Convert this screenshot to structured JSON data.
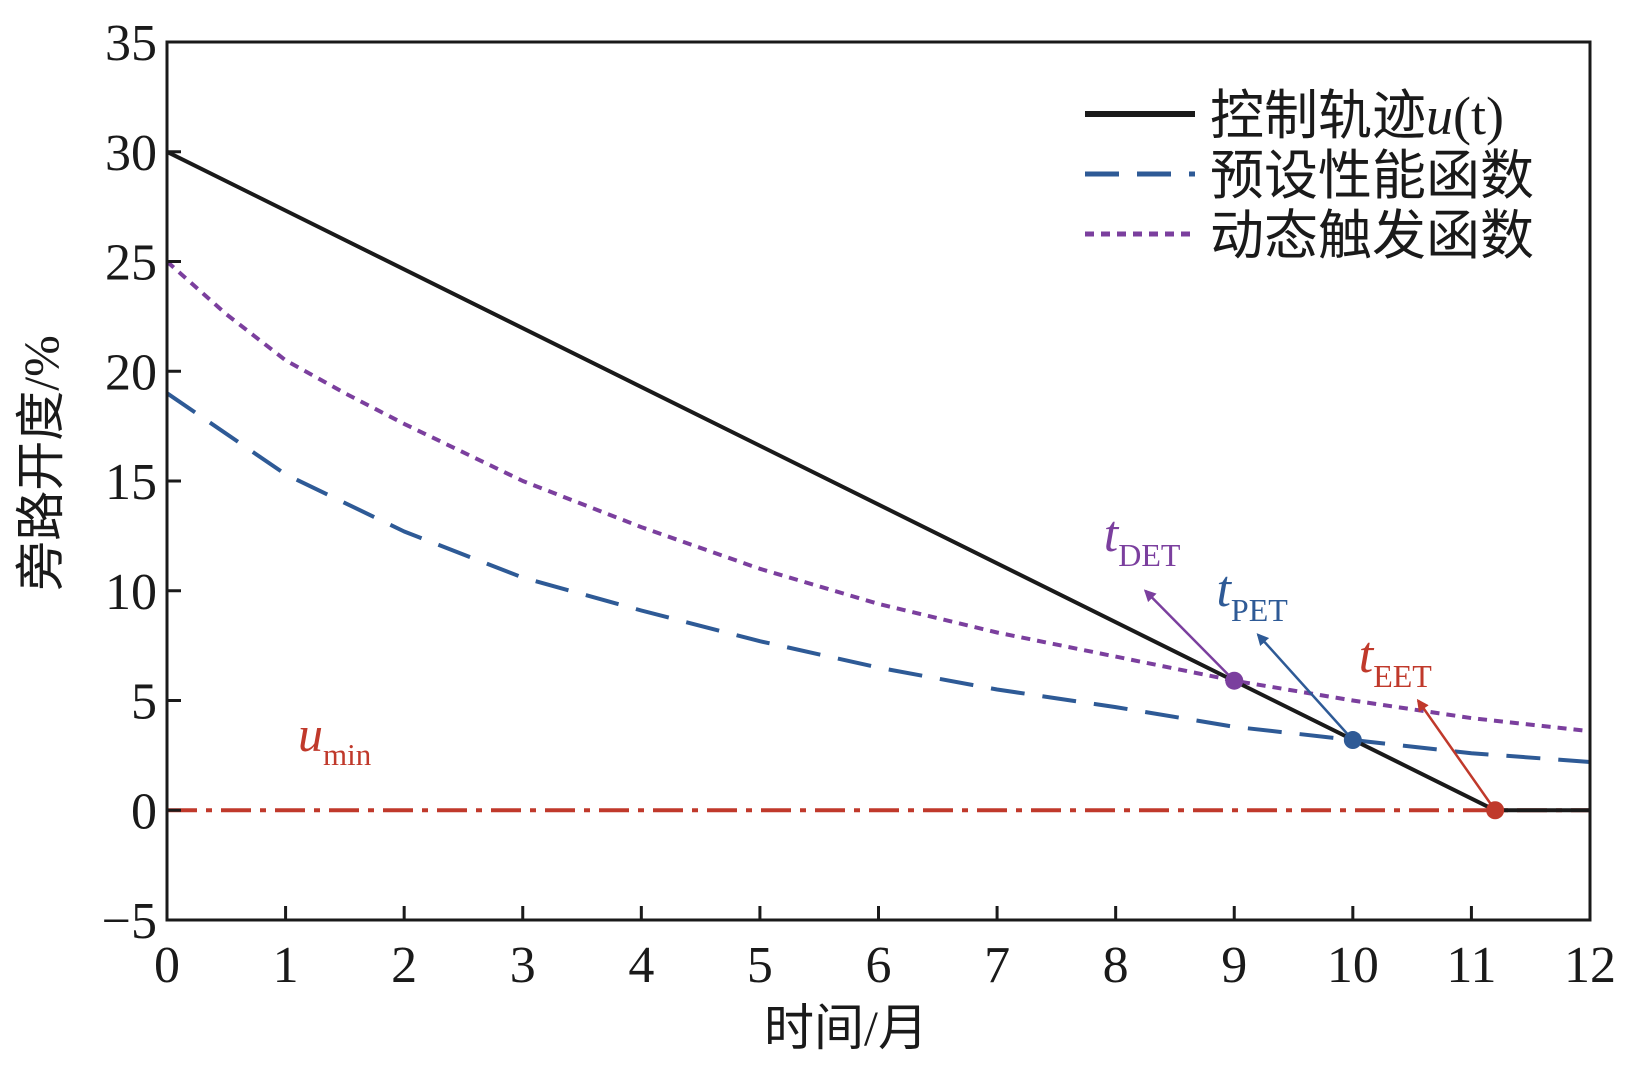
{
  "chart_data": {
    "type": "line",
    "xlabel": "时间/月",
    "ylabel": "旁路开度/%",
    "xlim": [
      0,
      12
    ],
    "ylim": [
      -5,
      35
    ],
    "xticks": [
      0,
      1,
      2,
      3,
      4,
      5,
      6,
      7,
      8,
      9,
      10,
      11,
      12
    ],
    "yticks": [
      -5,
      0,
      5,
      10,
      15,
      20,
      25,
      30,
      35
    ],
    "xtick_labels": [
      "0",
      "1",
      "2",
      "3",
      "4",
      "5",
      "6",
      "7",
      "8",
      "9",
      "10",
      "11",
      "12"
    ],
    "ytick_labels": [
      "−5",
      "0",
      "5",
      "10",
      "15",
      "20",
      "25",
      "30",
      "35"
    ],
    "grid": false,
    "legend_position": "top-right",
    "series": [
      {
        "name": "控制轨迹u(t)",
        "legend_main": "控制轨迹",
        "legend_math": "u",
        "legend_suffix": "(t)",
        "style": "solid",
        "color": "#1a1a1a",
        "x": [
          0,
          11.2,
          12
        ],
        "y": [
          30,
          0,
          0
        ]
      },
      {
        "name": "预设性能函数",
        "style": "dashed",
        "color": "#2e5a96",
        "x": [
          0,
          1,
          2,
          3,
          4,
          5,
          6,
          7,
          8,
          9,
          10,
          11,
          12
        ],
        "y": [
          19,
          15.3,
          12.7,
          10.6,
          9.1,
          7.7,
          6.5,
          5.5,
          4.7,
          3.8,
          3.2,
          2.6,
          2.2
        ]
      },
      {
        "name": "动态触发函数",
        "style": "dotted",
        "color": "#7b3f9e",
        "x": [
          0,
          0.5,
          1,
          1.5,
          2,
          3,
          4,
          5,
          6,
          7,
          8,
          9,
          10,
          11,
          12
        ],
        "y": [
          25,
          22.6,
          20.5,
          19,
          17.6,
          15,
          12.9,
          11,
          9.4,
          8.1,
          7,
          5.9,
          5,
          4.2,
          3.6
        ]
      }
    ],
    "reference_line": {
      "label_math": "u",
      "label_sub": "min",
      "y": 0,
      "style": "dashdot",
      "color": "#c0392b"
    },
    "annotations": [
      {
        "label_math": "t",
        "label_sub": "DET",
        "x": 9.0,
        "y": 5.9,
        "color": "#7b3f9e",
        "arrow_to": [
          8.25,
          10.0
        ],
        "text_at": [
          7.9,
          11.8
        ]
      },
      {
        "label_math": "t",
        "label_sub": "PET",
        "x": 10.0,
        "y": 3.2,
        "color": "#2e5a96",
        "arrow_to": [
          9.2,
          8.0
        ],
        "text_at": [
          8.85,
          9.3
        ]
      },
      {
        "label_math": "t",
        "label_sub": "EET",
        "x": 11.2,
        "y": 0,
        "color": "#c0392b",
        "arrow_to": [
          10.55,
          5.0
        ],
        "text_at": [
          10.05,
          6.3
        ]
      }
    ]
  }
}
